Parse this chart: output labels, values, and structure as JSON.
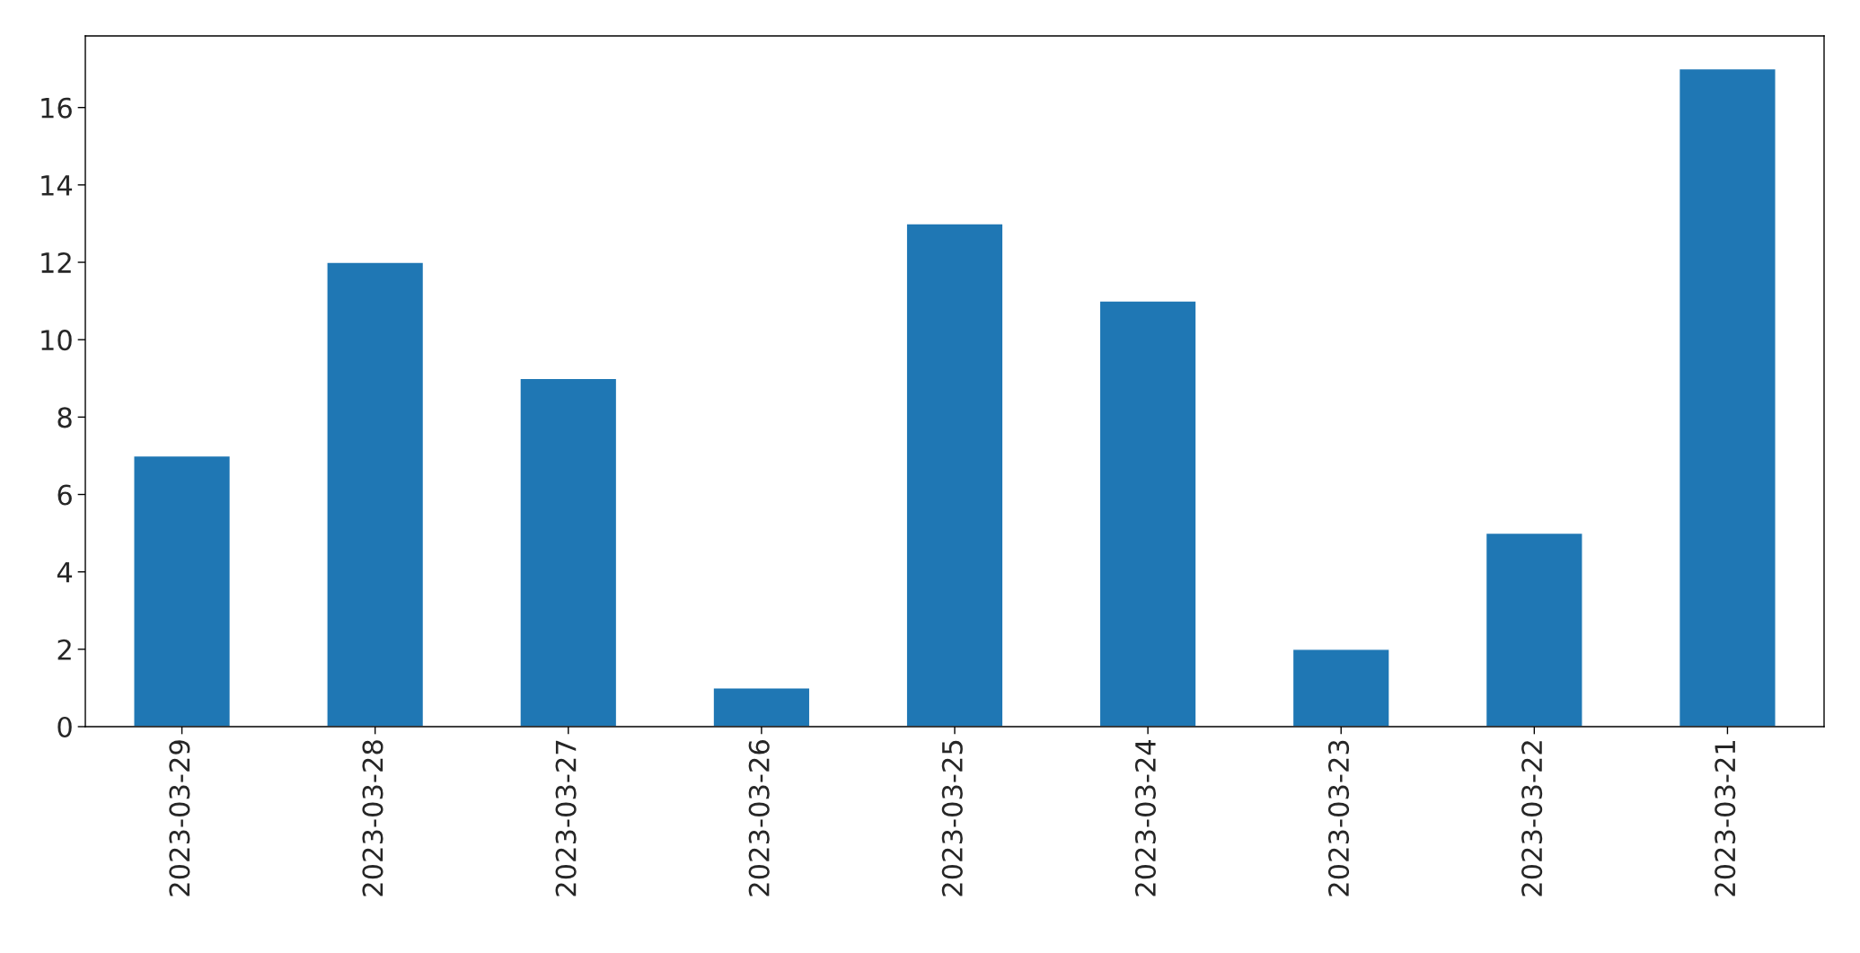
{
  "chart_data": {
    "type": "bar",
    "categories": [
      "2023-03-29",
      "2023-03-28",
      "2023-03-27",
      "2023-03-26",
      "2023-03-25",
      "2023-03-24",
      "2023-03-23",
      "2023-03-22",
      "2023-03-21"
    ],
    "values": [
      7,
      12,
      9,
      1,
      13,
      11,
      2,
      5,
      17
    ],
    "color": "#1f77b4",
    "ylim": [
      0,
      17.85
    ],
    "yticks": [
      0,
      2,
      4,
      6,
      8,
      10,
      12,
      14,
      16
    ],
    "grid": false
  }
}
